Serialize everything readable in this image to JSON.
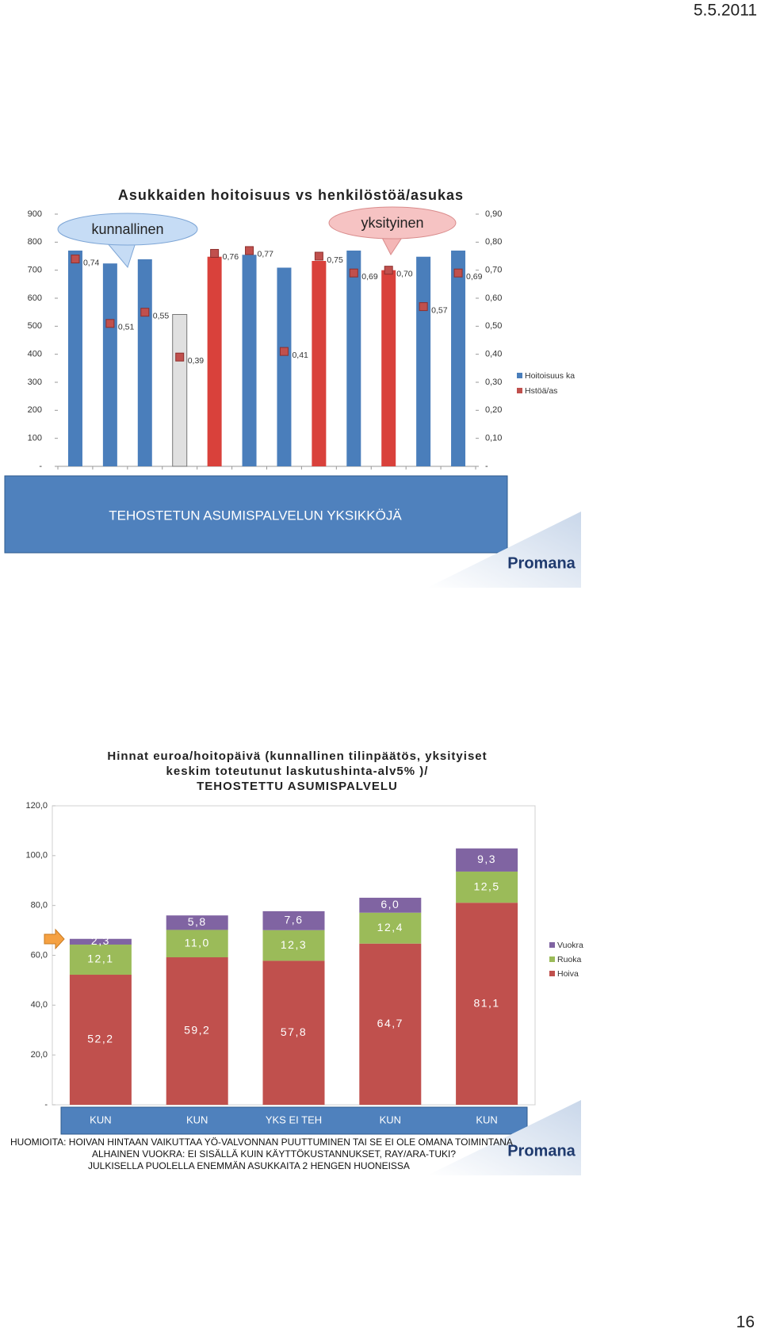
{
  "date": "5.5.2011",
  "page_number": "16",
  "callouts": [
    "kunnallinen",
    "yksityinen"
  ],
  "banner": "TEHOSTETUN ASUMISPALVELUN YKSIKKÖJÄ",
  "logo": "Promana",
  "notes": [
    "HUOMIOITA: HOIVAN HINTAAN VAIKUTTAA YÖ-VALVONNAN PUUTTUMINEN TAI SE EI OLE OMANA TOIMINTANA",
    "ALHAINEN VUOKRA: EI SISÄLLÄ KUIN KÄYTTÖKUSTANNUKSET, RAY/ARA-TUKI?",
    "JULKISELLA PUOLELLA ENEMMÄN ASUKKAITA 2 HENGEN HUONEISSA"
  ],
  "chart_data": [
    {
      "type": "bar",
      "title": "Asukkaiden hoitoisuus vs henkilöstöä/asukas",
      "series": [
        {
          "name": "Hoitoisuus ka",
          "color": "#4a7ebb",
          "colors": [
            "#4a7ebb",
            "#4a7ebb",
            "#4a7ebb",
            "#e0e0e0",
            "#d9413b",
            "#4a7ebb",
            "#4a7ebb",
            "#d9413b",
            "#4a7ebb",
            "#d9413b",
            "#4a7ebb",
            "#4a7ebb"
          ],
          "values": [
            770,
            724,
            739,
            542,
            748,
            755,
            709,
            733,
            770,
            700,
            748,
            770
          ]
        },
        {
          "name": "Hstöä/as",
          "color": "#c0504d",
          "axis": "y2",
          "marker": "square",
          "values": [
            0.74,
            0.51,
            0.55,
            0.39,
            0.76,
            0.77,
            0.41,
            0.75,
            0.69,
            0.7,
            0.57,
            0.69
          ],
          "value_labels": [
            "0,74",
            "0,51",
            "0,55",
            "0,39",
            "0,76",
            "0,77",
            "0,41",
            "0,75",
            "0,69",
            "0,70",
            "0,57",
            "0,69"
          ]
        }
      ],
      "ylim": [
        0,
        900
      ],
      "yticks": [
        {
          "value": 0,
          "label": "-"
        },
        100,
        200,
        300,
        400,
        500,
        600,
        700,
        800,
        900
      ],
      "y2lim": [
        0,
        0.9
      ],
      "y2ticks": [
        {
          "value": 0,
          "label": "-"
        },
        {
          "value": 0.1,
          "label": "0,10"
        },
        {
          "value": 0.2,
          "label": "0,20"
        },
        {
          "value": 0.3,
          "label": "0,30"
        },
        {
          "value": 0.4,
          "label": "0,40"
        },
        {
          "value": 0.5,
          "label": "0,50"
        },
        {
          "value": 0.6,
          "label": "0,60"
        },
        {
          "value": 0.7,
          "label": "0,70"
        },
        {
          "value": 0.8,
          "label": "0,80"
        },
        {
          "value": 0.9,
          "label": "0,90"
        }
      ],
      "grid": false,
      "legend": "right"
    },
    {
      "type": "stackedbar",
      "title": [
        "Hinnat euroa/hoitopäivä (kunnallinen tilinpäätös, yksityiset",
        "keskim toteutunut laskutushinta-alv5% )/",
        "TEHOSTETTU ASUMISPALVELU"
      ],
      "categories": [
        "KUN",
        "KUN",
        "YKS EI TEH",
        "KUN",
        "KUN"
      ],
      "series": [
        {
          "name": "Hoiva",
          "color": "#c0504d",
          "values": [
            52.2,
            59.2,
            57.8,
            64.7,
            81.1
          ],
          "value_labels": [
            "52,2",
            "59,2",
            "57,8",
            "64,7",
            "81,1"
          ]
        },
        {
          "name": "Ruoka",
          "color": "#9bbb59",
          "values": [
            12.1,
            11.0,
            12.3,
            12.4,
            12.5
          ],
          "value_labels": [
            "12,1",
            "11,0",
            "12,3",
            "12,4",
            "12,5"
          ]
        },
        {
          "name": "Vuokra",
          "color": "#8064a2",
          "values": [
            2.3,
            5.8,
            7.6,
            6.0,
            9.3
          ],
          "value_labels": [
            "2,3",
            "5,8",
            "7,6",
            "6,0",
            "9,3"
          ]
        }
      ],
      "ylim": [
        0,
        120
      ],
      "yticks": [
        {
          "value": 0,
          "label": "-"
        },
        {
          "value": 20,
          "label": "20,0"
        },
        {
          "value": 40,
          "label": "40,0"
        },
        {
          "value": 60,
          "label": "60,0"
        },
        {
          "value": 80,
          "label": "80,0"
        },
        {
          "value": 100,
          "label": "100,0"
        },
        {
          "value": 120,
          "label": "120,0"
        }
      ],
      "grid": false,
      "legend": "right"
    }
  ]
}
